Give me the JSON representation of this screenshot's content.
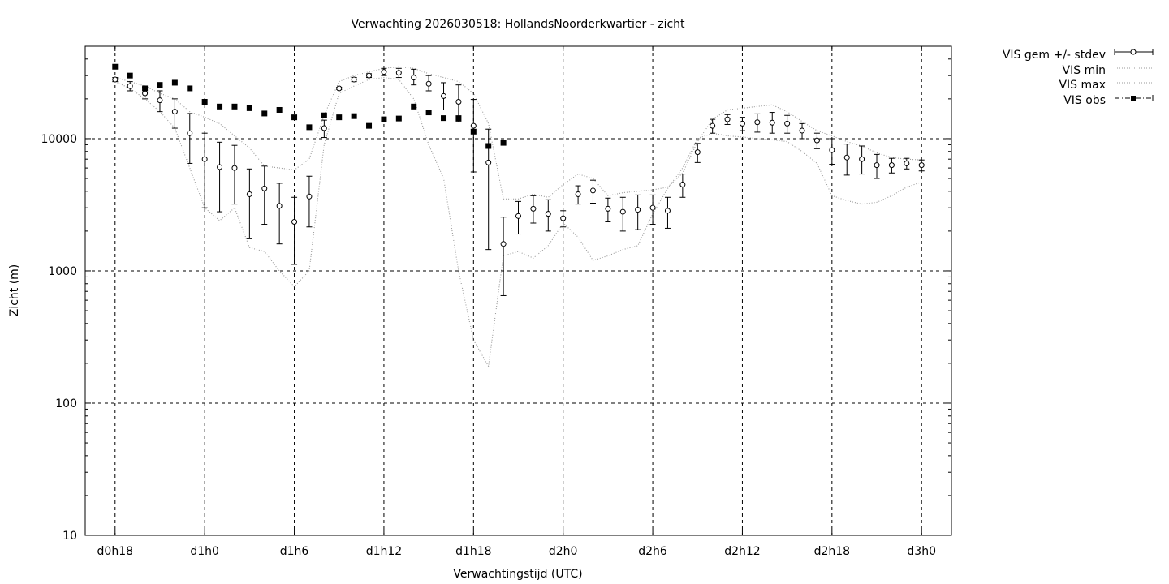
{
  "chart_data": {
    "type": "line",
    "title": "Verwachting 2026030518: HollandsNoorderkwartier - zicht",
    "xlabel": "Verwachtingstijd (UTC)",
    "ylabel": "Zicht (m)",
    "x_unit": "hours",
    "xlim": [
      -2,
      56
    ],
    "ylim": [
      10,
      50000
    ],
    "yscale": "log",
    "grid": true,
    "legend_position": "outside top-right",
    "x_ticks": [
      {
        "x": 0,
        "label": "d0h18"
      },
      {
        "x": 6,
        "label": "d1h0"
      },
      {
        "x": 12,
        "label": "d1h6"
      },
      {
        "x": 18,
        "label": "d1h12"
      },
      {
        "x": 24,
        "label": "d1h18"
      },
      {
        "x": 30,
        "label": "d2h0"
      },
      {
        "x": 36,
        "label": "d2h6"
      },
      {
        "x": 42,
        "label": "d2h12"
      },
      {
        "x": 48,
        "label": "d2h18"
      },
      {
        "x": 54,
        "label": "d3h0"
      }
    ],
    "y_ticks": [
      {
        "y": 10,
        "label": "10"
      },
      {
        "y": 100,
        "label": "100"
      },
      {
        "y": 1000,
        "label": "1000"
      },
      {
        "y": 10000,
        "label": "10000"
      }
    ],
    "series": [
      {
        "name": "VIS gem +/- stdev",
        "style": "points-errorbars",
        "points": [
          [
            0,
            28000,
            27000,
            29000
          ],
          [
            1,
            25000,
            23000,
            27000
          ],
          [
            2,
            22000,
            20000,
            24500
          ],
          [
            3,
            19500,
            16000,
            23000
          ],
          [
            4,
            16000,
            12000,
            20000
          ],
          [
            5,
            11000,
            6500,
            15500
          ],
          [
            6,
            7000,
            3000,
            11000
          ],
          [
            7,
            6100,
            2800,
            9400
          ],
          [
            8,
            6000,
            3200,
            8900
          ],
          [
            9,
            3800,
            1750,
            5900
          ],
          [
            10,
            4200,
            2250,
            6200
          ],
          [
            11,
            3100,
            1600,
            4600
          ],
          [
            12,
            2350,
            1120,
            3600
          ],
          [
            13,
            3650,
            2150,
            5200
          ],
          [
            14,
            12000,
            10200,
            13800
          ],
          [
            15,
            24000,
            23500,
            24500
          ],
          [
            16,
            28000,
            27000,
            29000
          ],
          [
            17,
            30000,
            29000,
            31000
          ],
          [
            18,
            32000,
            30000,
            34000
          ],
          [
            19,
            31500,
            29000,
            34000
          ],
          [
            20,
            29000,
            25500,
            33500
          ],
          [
            21,
            26000,
            23000,
            30000
          ],
          [
            22,
            21000,
            16500,
            26500
          ],
          [
            23,
            19000,
            13500,
            25500
          ],
          [
            24,
            12500,
            5600,
            19800
          ],
          [
            25,
            6600,
            1450,
            11800
          ],
          [
            26,
            1600,
            650,
            2550
          ],
          [
            27,
            2600,
            1900,
            3350
          ],
          [
            28,
            2950,
            2300,
            3700
          ],
          [
            29,
            2700,
            2000,
            3450
          ],
          [
            30,
            2500,
            2150,
            2850
          ],
          [
            31,
            3800,
            3200,
            4400
          ],
          [
            32,
            4050,
            3250,
            4850
          ],
          [
            33,
            2950,
            2350,
            3550
          ],
          [
            34,
            2800,
            2000,
            3600
          ],
          [
            35,
            2900,
            2050,
            3750
          ],
          [
            36,
            3000,
            2250,
            3750
          ],
          [
            37,
            2850,
            2100,
            3600
          ],
          [
            38,
            4500,
            3600,
            5400
          ],
          [
            39,
            7900,
            6600,
            9200
          ],
          [
            40,
            12500,
            11000,
            14000
          ],
          [
            41,
            14000,
            12800,
            15200
          ],
          [
            42,
            13000,
            11500,
            14500
          ],
          [
            43,
            13300,
            11200,
            15400
          ],
          [
            44,
            13200,
            11000,
            15800
          ],
          [
            45,
            13000,
            11000,
            15000
          ],
          [
            46,
            11500,
            10000,
            13000
          ],
          [
            47,
            9700,
            8400,
            11000
          ],
          [
            48,
            8200,
            6400,
            10000
          ],
          [
            49,
            7200,
            5300,
            9100
          ],
          [
            50,
            7000,
            5400,
            8800
          ],
          [
            51,
            6300,
            5000,
            7600
          ],
          [
            52,
            6300,
            5500,
            7100
          ],
          [
            53,
            6500,
            5900,
            7100
          ],
          [
            54,
            6300,
            5700,
            6900
          ]
        ]
      },
      {
        "name": "VIS min",
        "style": "dotted-line",
        "points": [
          [
            0,
            27000
          ],
          [
            1,
            24000
          ],
          [
            2,
            20000
          ],
          [
            3,
            16000
          ],
          [
            4,
            12000
          ],
          [
            5,
            6000
          ],
          [
            6,
            3000
          ],
          [
            7,
            2400
          ],
          [
            8,
            3000
          ],
          [
            9,
            1500
          ],
          [
            10,
            1400
          ],
          [
            11,
            1000
          ],
          [
            12,
            760
          ],
          [
            13,
            1000
          ],
          [
            14,
            9000
          ],
          [
            15,
            22000
          ],
          [
            16,
            25000
          ],
          [
            17,
            28000
          ],
          [
            18,
            29000
          ],
          [
            19,
            28000
          ],
          [
            20,
            20000
          ],
          [
            21,
            9000
          ],
          [
            22,
            5000
          ],
          [
            23,
            1000
          ],
          [
            24,
            300
          ],
          [
            25,
            190
          ],
          [
            26,
            1300
          ],
          [
            27,
            1400
          ],
          [
            28,
            1250
          ],
          [
            29,
            1550
          ],
          [
            30,
            2300
          ],
          [
            31,
            1800
          ],
          [
            32,
            1200
          ],
          [
            33,
            1300
          ],
          [
            34,
            1450
          ],
          [
            35,
            1550
          ],
          [
            36,
            2700
          ],
          [
            37,
            4200
          ],
          [
            38,
            6000
          ],
          [
            39,
            10000
          ],
          [
            40,
            11000
          ],
          [
            41,
            10500
          ],
          [
            42,
            10300
          ],
          [
            43,
            10000
          ],
          [
            44,
            9800
          ],
          [
            45,
            9500
          ],
          [
            46,
            8000
          ],
          [
            47,
            6500
          ],
          [
            48,
            3700
          ],
          [
            49,
            3400
          ],
          [
            50,
            3200
          ],
          [
            51,
            3300
          ],
          [
            52,
            3700
          ],
          [
            53,
            4300
          ],
          [
            54,
            4700
          ]
        ]
      },
      {
        "name": "VIS max",
        "style": "dotted-line",
        "points": [
          [
            0,
            29000
          ],
          [
            1,
            27000
          ],
          [
            2,
            25000
          ],
          [
            3,
            22000
          ],
          [
            4,
            20000
          ],
          [
            5,
            16000
          ],
          [
            6,
            14500
          ],
          [
            7,
            13000
          ],
          [
            8,
            10500
          ],
          [
            9,
            8500
          ],
          [
            10,
            6200
          ],
          [
            11,
            6000
          ],
          [
            12,
            5800
          ],
          [
            13,
            7000
          ],
          [
            14,
            15000
          ],
          [
            15,
            27000
          ],
          [
            16,
            30000
          ],
          [
            17,
            32000
          ],
          [
            18,
            34000
          ],
          [
            19,
            35000
          ],
          [
            20,
            34000
          ],
          [
            21,
            31000
          ],
          [
            22,
            29000
          ],
          [
            23,
            27000
          ],
          [
            24,
            22000
          ],
          [
            25,
            13000
          ],
          [
            26,
            3500
          ],
          [
            27,
            3500
          ],
          [
            28,
            3800
          ],
          [
            29,
            3600
          ],
          [
            30,
            4500
          ],
          [
            31,
            5400
          ],
          [
            32,
            5000
          ],
          [
            33,
            3700
          ],
          [
            34,
            3900
          ],
          [
            35,
            4000
          ],
          [
            36,
            4100
          ],
          [
            37,
            4300
          ],
          [
            38,
            5500
          ],
          [
            39,
            9500
          ],
          [
            40,
            14000
          ],
          [
            41,
            16500
          ],
          [
            42,
            17000
          ],
          [
            43,
            17500
          ],
          [
            44,
            18000
          ],
          [
            45,
            16000
          ],
          [
            46,
            13500
          ],
          [
            47,
            11500
          ],
          [
            48,
            10500
          ],
          [
            49,
            9500
          ],
          [
            50,
            8800
          ],
          [
            51,
            7800
          ],
          [
            52,
            7200
          ],
          [
            53,
            7000
          ],
          [
            54,
            6900
          ]
        ]
      },
      {
        "name": "VIS obs",
        "style": "filled-square-points",
        "points": [
          [
            0,
            35000
          ],
          [
            1,
            30000
          ],
          [
            2,
            24000
          ],
          [
            3,
            25500
          ],
          [
            4,
            26500
          ],
          [
            5,
            24000
          ],
          [
            6,
            19000
          ],
          [
            7,
            17500
          ],
          [
            8,
            17500
          ],
          [
            9,
            17000
          ],
          [
            10,
            15500
          ],
          [
            11,
            16500
          ],
          [
            12,
            14500
          ],
          [
            13,
            12200
          ],
          [
            14,
            15000
          ],
          [
            15,
            14500
          ],
          [
            16,
            14800
          ],
          [
            17,
            12500
          ],
          [
            18,
            14000
          ],
          [
            19,
            14200
          ],
          [
            20,
            17500
          ],
          [
            21,
            15800
          ],
          [
            22,
            14300
          ],
          [
            23,
            14300
          ],
          [
            24,
            11300
          ],
          [
            25,
            8800
          ],
          [
            26,
            9300
          ]
        ]
      }
    ]
  }
}
